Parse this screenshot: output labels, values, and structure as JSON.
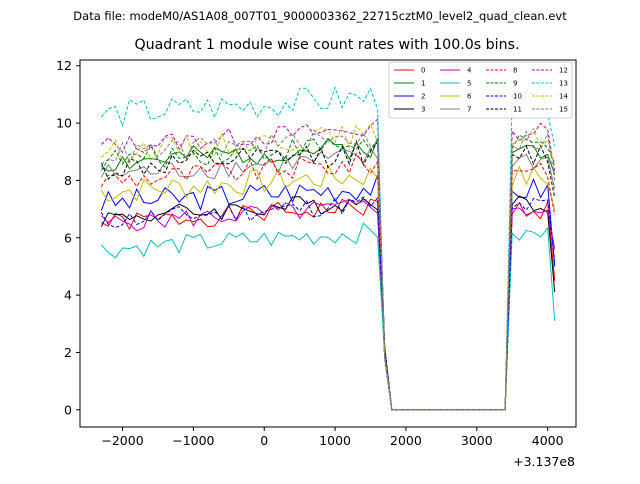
{
  "chart_data": {
    "type": "line",
    "suptitle": "Data file: modeM0/AS1A08_007T01_9000003362_22715cztM0_level2_quad_clean.evt",
    "title": "Quadrant 1 module wise count rates with 100.0s bins.",
    "xlabel": "",
    "ylabel": "",
    "x_offset_label": "+3.137e8",
    "xlim": [
      -2600,
      4400
    ],
    "ylim": [
      -0.6,
      12.2
    ],
    "xticks": [
      -2000,
      -1000,
      0,
      1000,
      2000,
      3000,
      4000
    ],
    "xtick_labels": [
      "−2000",
      "−1000",
      "0",
      "1000",
      "2000",
      "3000",
      "4000"
    ],
    "yticks": [
      0,
      2,
      4,
      6,
      8,
      10,
      12
    ],
    "ytick_labels": [
      "0",
      "2",
      "4",
      "6",
      "8",
      "10",
      "12"
    ],
    "legend_location": "top-right",
    "x_start": -2300,
    "x_step": 100,
    "segments": [
      {
        "from": -2300,
        "to": 1600,
        "note": "active"
      },
      {
        "from": 1800,
        "to": 3400,
        "note": "zero"
      },
      {
        "from": 3500,
        "to": 4100,
        "note": "active"
      }
    ],
    "series": [
      {
        "name": "0",
        "color": "#ff0000",
        "dash": "solid",
        "base": 6.5,
        "end": 4.5,
        "amp": 0.35,
        "seed": 1
      },
      {
        "name": "1",
        "color": "#008000",
        "dash": "solid",
        "base": 8.6,
        "end": 8.2,
        "amp": 0.4,
        "seed": 2
      },
      {
        "name": "2",
        "color": "#0000ff",
        "dash": "solid",
        "base": 7.2,
        "end": 5.0,
        "amp": 0.45,
        "seed": 3
      },
      {
        "name": "3",
        "color": "#000000",
        "dash": "solid",
        "base": 6.7,
        "end": 4.1,
        "amp": 0.35,
        "seed": 4
      },
      {
        "name": "4",
        "color": "#c000c0",
        "dash": "solid",
        "base": 6.5,
        "end": 5.6,
        "amp": 0.35,
        "seed": 5
      },
      {
        "name": "5",
        "color": "#00bfbf",
        "dash": "solid",
        "base": 5.6,
        "end": 3.1,
        "amp": 0.35,
        "seed": 6
      },
      {
        "name": "6",
        "color": "#bfbf00",
        "dash": "solid",
        "base": 7.6,
        "end": 7.0,
        "amp": 0.45,
        "seed": 7
      },
      {
        "name": "7",
        "color": "#808080",
        "dash": "solid",
        "base": 8.2,
        "end": 7.7,
        "amp": 0.4,
        "seed": 8
      },
      {
        "name": "8",
        "color": "#ff0000",
        "dash": "dashed",
        "base": 8.0,
        "end": 6.8,
        "amp": 0.4,
        "seed": 9
      },
      {
        "name": "9",
        "color": "#008000",
        "dash": "dashed",
        "base": 8.7,
        "end": 8.6,
        "amp": 0.4,
        "seed": 10
      },
      {
        "name": "10",
        "color": "#0000ff",
        "dash": "dashed",
        "base": 6.6,
        "end": 5.2,
        "amp": 0.35,
        "seed": 11
      },
      {
        "name": "11",
        "color": "#000000",
        "dash": "dashed",
        "base": 8.4,
        "end": 7.4,
        "amp": 0.45,
        "seed": 12
      },
      {
        "name": "12",
        "color": "#c000c0",
        "dash": "dashed",
        "base": 9.2,
        "end": 8.3,
        "amp": 0.35,
        "seed": 13
      },
      {
        "name": "13",
        "color": "#00bfbf",
        "dash": "dashed",
        "base": 10.3,
        "end": 9.2,
        "amp": 0.5,
        "seed": 14
      },
      {
        "name": "14",
        "color": "#bfbf00",
        "dash": "dashed",
        "base": 9.0,
        "end": 8.5,
        "amp": 0.4,
        "seed": 15
      },
      {
        "name": "15",
        "color": "#808080",
        "dash": "dashed",
        "base": 8.9,
        "end": 8.0,
        "amp": 0.4,
        "seed": 16
      }
    ]
  }
}
